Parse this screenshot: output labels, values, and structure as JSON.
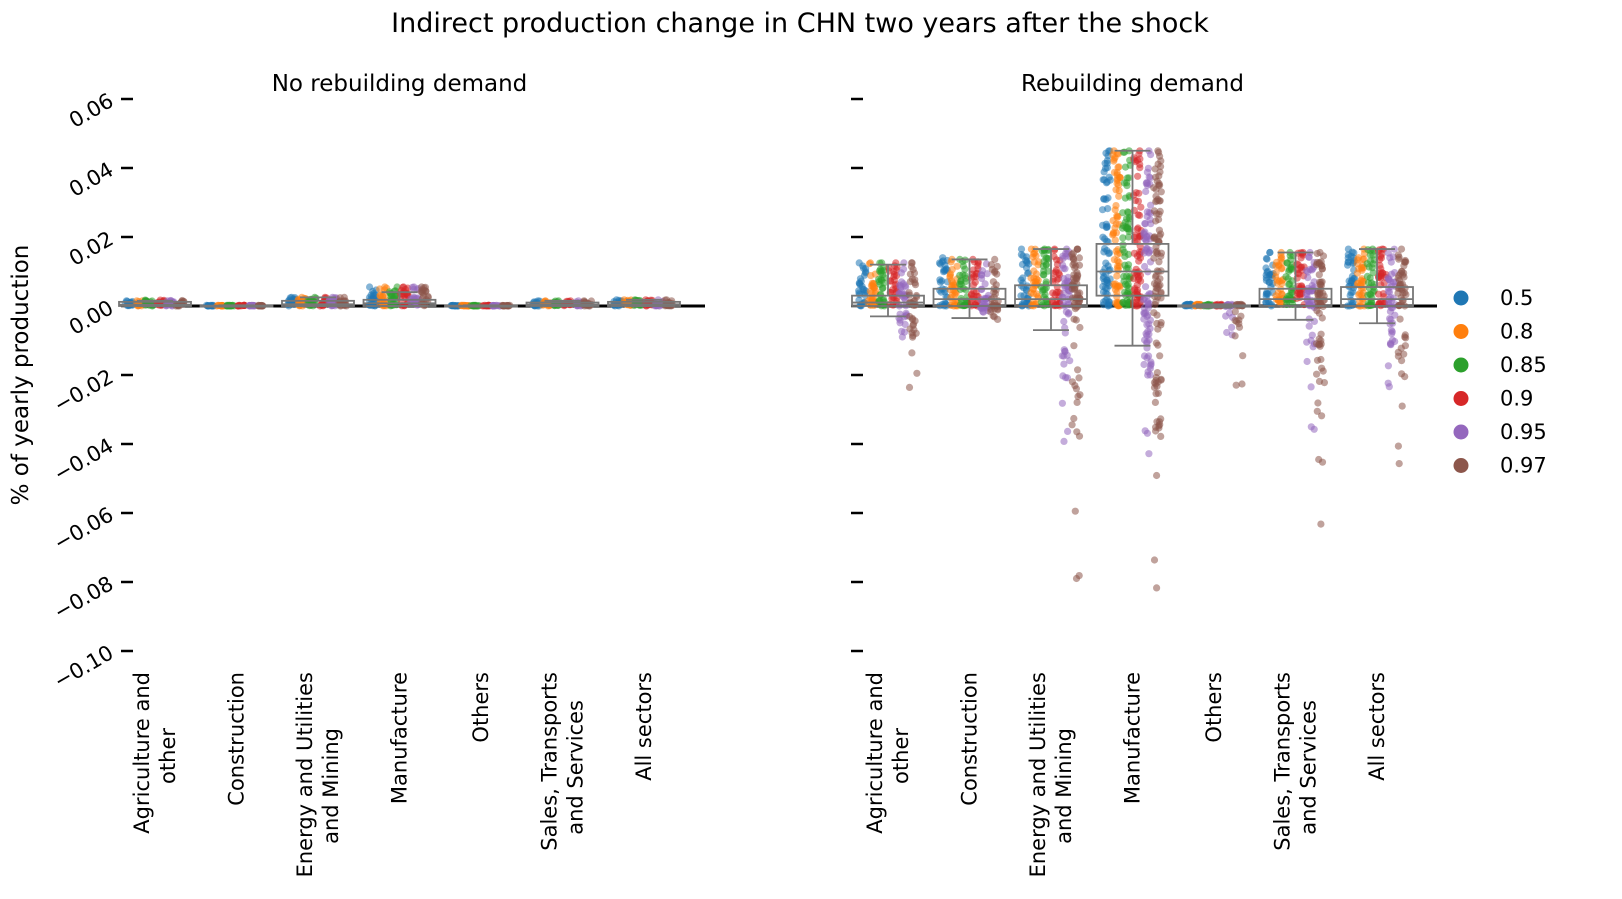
{
  "figure": {
    "title": "Indirect production change in CHN two years after the shock"
  },
  "legend": {
    "placement": "right",
    "entries": [
      {
        "label": "0.5",
        "color": "#1f77b4"
      },
      {
        "label": "0.8",
        "color": "#ff7f0e"
      },
      {
        "label": "0.85",
        "color": "#2ca02c"
      },
      {
        "label": "0.9",
        "color": "#d62728"
      },
      {
        "label": "0.95",
        "color": "#9467bd"
      },
      {
        "label": "0.97",
        "color": "#8c564b"
      }
    ]
  },
  "chart_data": {
    "type": "scatter",
    "subtype": "strip plot with box plot overlay",
    "ylabel": "% of yearly production",
    "ylim": [
      -0.1,
      0.065
    ],
    "yticks": [
      0.06,
      0.04,
      0.02,
      0.0,
      -0.02,
      -0.04,
      -0.06,
      -0.08,
      -0.1
    ],
    "ytick_labels": [
      "0.06",
      "0.04",
      "0.02",
      "0.00",
      "−0.02",
      "−0.04",
      "−0.06",
      "−0.08",
      "−0.10"
    ],
    "categories": [
      [
        "Agriculture and",
        "other"
      ],
      [
        "Construction"
      ],
      [
        "Energy and Utilities",
        "and Mining"
      ],
      [
        "Manufacture"
      ],
      [
        "Others"
      ],
      [
        "Sales, Transports",
        "and Services"
      ],
      [
        "All sectors"
      ]
    ],
    "hue_levels": [
      "0.5",
      "0.8",
      "0.85",
      "0.9",
      "0.95",
      "0.97"
    ],
    "reference_line_y": 0,
    "panels": [
      {
        "title": "No rebuilding demand",
        "groups": [
          {
            "box": {
              "q1": 0.0,
              "median": 0.0004,
              "q3": 0.0012,
              "wlow": 0.0,
              "whigh": 0.0015
            },
            "hues": [
              {
                "min": 0.0,
                "max": 0.0015
              },
              {
                "min": 0.0,
                "max": 0.0015
              },
              {
                "min": 0.0,
                "max": 0.0017
              },
              {
                "min": 0.0,
                "max": 0.0017
              },
              {
                "min": 0.0,
                "max": 0.0016
              },
              {
                "min": 0.0,
                "max": 0.0016
              }
            ]
          },
          {
            "box": {
              "q1": 0.0,
              "median": 0.0,
              "q3": 0.0001,
              "wlow": 0.0,
              "whigh": 0.0002
            },
            "hues": [
              {
                "min": 0.0,
                "max": 0.0002
              },
              {
                "min": 0.0,
                "max": 0.0002
              },
              {
                "min": 0.0,
                "max": 0.0002
              },
              {
                "min": 0.0,
                "max": 0.0002
              },
              {
                "min": 0.0,
                "max": 0.0002
              },
              {
                "min": 0.0,
                "max": 0.0002
              }
            ]
          },
          {
            "box": {
              "q1": 0.0,
              "median": 0.0005,
              "q3": 0.0015,
              "wlow": 0.0,
              "whigh": 0.0025
            },
            "hues": [
              {
                "min": 0.0,
                "max": 0.0025
              },
              {
                "min": 0.0,
                "max": 0.0025
              },
              {
                "min": 0.0,
                "max": 0.0025
              },
              {
                "min": 0.0,
                "max": 0.0025
              },
              {
                "min": 0.0,
                "max": 0.0025
              },
              {
                "min": 0.0,
                "max": 0.0025
              }
            ]
          },
          {
            "box": {
              "q1": 0.0,
              "median": 0.0008,
              "q3": 0.0018,
              "wlow": 0.0,
              "whigh": 0.004
            },
            "hues": [
              {
                "min": 0.0,
                "max": 0.0055
              },
              {
                "min": 0.0,
                "max": 0.0055
              },
              {
                "min": 0.0,
                "max": 0.0055
              },
              {
                "min": 0.0,
                "max": 0.0055
              },
              {
                "min": 0.0,
                "max": 0.0055
              },
              {
                "min": 0.0,
                "max": 0.0055
              }
            ]
          },
          {
            "box": {
              "q1": 0.0,
              "median": 0.0,
              "q3": 0.0001,
              "wlow": 0.0,
              "whigh": 0.0002
            },
            "hues": [
              {
                "min": 0.0,
                "max": 0.0002
              },
              {
                "min": 0.0,
                "max": 0.0002
              },
              {
                "min": 0.0,
                "max": 0.0002
              },
              {
                "min": 0.0,
                "max": 0.0002
              },
              {
                "min": 0.0,
                "max": 0.0002
              },
              {
                "min": 0.0,
                "max": 0.0002
              }
            ]
          },
          {
            "box": {
              "q1": 0.0,
              "median": 0.0004,
              "q3": 0.001,
              "wlow": 0.0,
              "whigh": 0.0015
            },
            "hues": [
              {
                "min": 0.0,
                "max": 0.0015
              },
              {
                "min": 0.0,
                "max": 0.0015
              },
              {
                "min": 0.0,
                "max": 0.0015
              },
              {
                "min": 0.0,
                "max": 0.0015
              },
              {
                "min": 0.0,
                "max": 0.0015
              },
              {
                "min": 0.0,
                "max": 0.0015
              }
            ]
          },
          {
            "box": {
              "q1": 0.0,
              "median": 0.0005,
              "q3": 0.0012,
              "wlow": 0.0,
              "whigh": 0.0018
            },
            "hues": [
              {
                "min": 0.0,
                "max": 0.0018
              },
              {
                "min": 0.0,
                "max": 0.0018
              },
              {
                "min": 0.0,
                "max": 0.0018
              },
              {
                "min": 0.0,
                "max": 0.0018
              },
              {
                "min": 0.0,
                "max": 0.0018
              },
              {
                "min": 0.0,
                "max": 0.0018
              }
            ]
          }
        ]
      },
      {
        "title": "Rebuilding demand",
        "groups": [
          {
            "box": {
              "q1": 0.0,
              "median": 0.001,
              "q3": 0.003,
              "wlow": -0.003,
              "whigh": 0.012
            },
            "hues": [
              {
                "min": 0.0,
                "max": 0.0125
              },
              {
                "min": 0.0,
                "max": 0.0125
              },
              {
                "min": 0.0,
                "max": 0.0125
              },
              {
                "min": 0.0,
                "max": 0.0125
              },
              {
                "min": -0.012,
                "max": 0.0125
              },
              {
                "min": -0.024,
                "max": 0.0125
              }
            ]
          },
          {
            "box": {
              "q1": 0.0,
              "median": 0.002,
              "q3": 0.005,
              "wlow": -0.0035,
              "whigh": 0.0135
            },
            "hues": [
              {
                "min": 0.0,
                "max": 0.014
              },
              {
                "min": 0.0,
                "max": 0.0135
              },
              {
                "min": 0.0,
                "max": 0.0135
              },
              {
                "min": 0.0,
                "max": 0.0135
              },
              {
                "min": -0.002,
                "max": 0.0135
              },
              {
                "min": -0.004,
                "max": 0.0135
              }
            ]
          },
          {
            "box": {
              "q1": 0.0,
              "median": 0.002,
              "q3": 0.006,
              "wlow": -0.007,
              "whigh": 0.0165
            },
            "hues": [
              {
                "min": 0.0,
                "max": 0.0165
              },
              {
                "min": 0.0,
                "max": 0.0165
              },
              {
                "min": 0.0,
                "max": 0.0165
              },
              {
                "min": 0.0,
                "max": 0.0165
              },
              {
                "min": -0.048,
                "max": 0.0165
              },
              {
                "min": -0.084,
                "max": 0.0165
              }
            ]
          },
          {
            "box": {
              "q1": 0.003,
              "median": 0.01,
              "q3": 0.018,
              "wlow": -0.0115,
              "whigh": 0.045
            },
            "hues": [
              {
                "min": 0.0,
                "max": 0.045
              },
              {
                "min": 0.0,
                "max": 0.045
              },
              {
                "min": 0.0,
                "max": 0.045
              },
              {
                "min": 0.0,
                "max": 0.045
              },
              {
                "min": -0.045,
                "max": 0.045
              },
              {
                "min": -0.0855,
                "max": 0.045
              }
            ]
          },
          {
            "box": {
              "q1": -0.0002,
              "median": 0.0,
              "q3": 0.0002,
              "wlow": -0.0005,
              "whigh": 0.0005
            },
            "hues": [
              {
                "min": 0.0,
                "max": 0.0005
              },
              {
                "min": 0.0,
                "max": 0.0005
              },
              {
                "min": 0.0,
                "max": 0.0005
              },
              {
                "min": 0.0,
                "max": 0.0005
              },
              {
                "min": -0.009,
                "max": 0.0005
              },
              {
                "min": -0.023,
                "max": 0.0005
              }
            ]
          },
          {
            "box": {
              "q1": 0.0,
              "median": 0.002,
              "q3": 0.005,
              "wlow": -0.004,
              "whigh": 0.0155
            },
            "hues": [
              {
                "min": 0.0,
                "max": 0.0155
              },
              {
                "min": 0.0,
                "max": 0.0155
              },
              {
                "min": 0.0,
                "max": 0.0155
              },
              {
                "min": 0.0,
                "max": 0.0155
              },
              {
                "min": -0.036,
                "max": 0.0155
              },
              {
                "min": -0.074,
                "max": 0.0155
              }
            ]
          },
          {
            "box": {
              "q1": 0.0,
              "median": 0.002,
              "q3": 0.0055,
              "wlow": -0.005,
              "whigh": 0.0165
            },
            "hues": [
              {
                "min": 0.0,
                "max": 0.0165
              },
              {
                "min": 0.0,
                "max": 0.0165
              },
              {
                "min": 0.0,
                "max": 0.0165
              },
              {
                "min": 0.0,
                "max": 0.0165
              },
              {
                "min": -0.025,
                "max": 0.0165
              },
              {
                "min": -0.049,
                "max": 0.0165
              }
            ]
          }
        ]
      }
    ]
  }
}
